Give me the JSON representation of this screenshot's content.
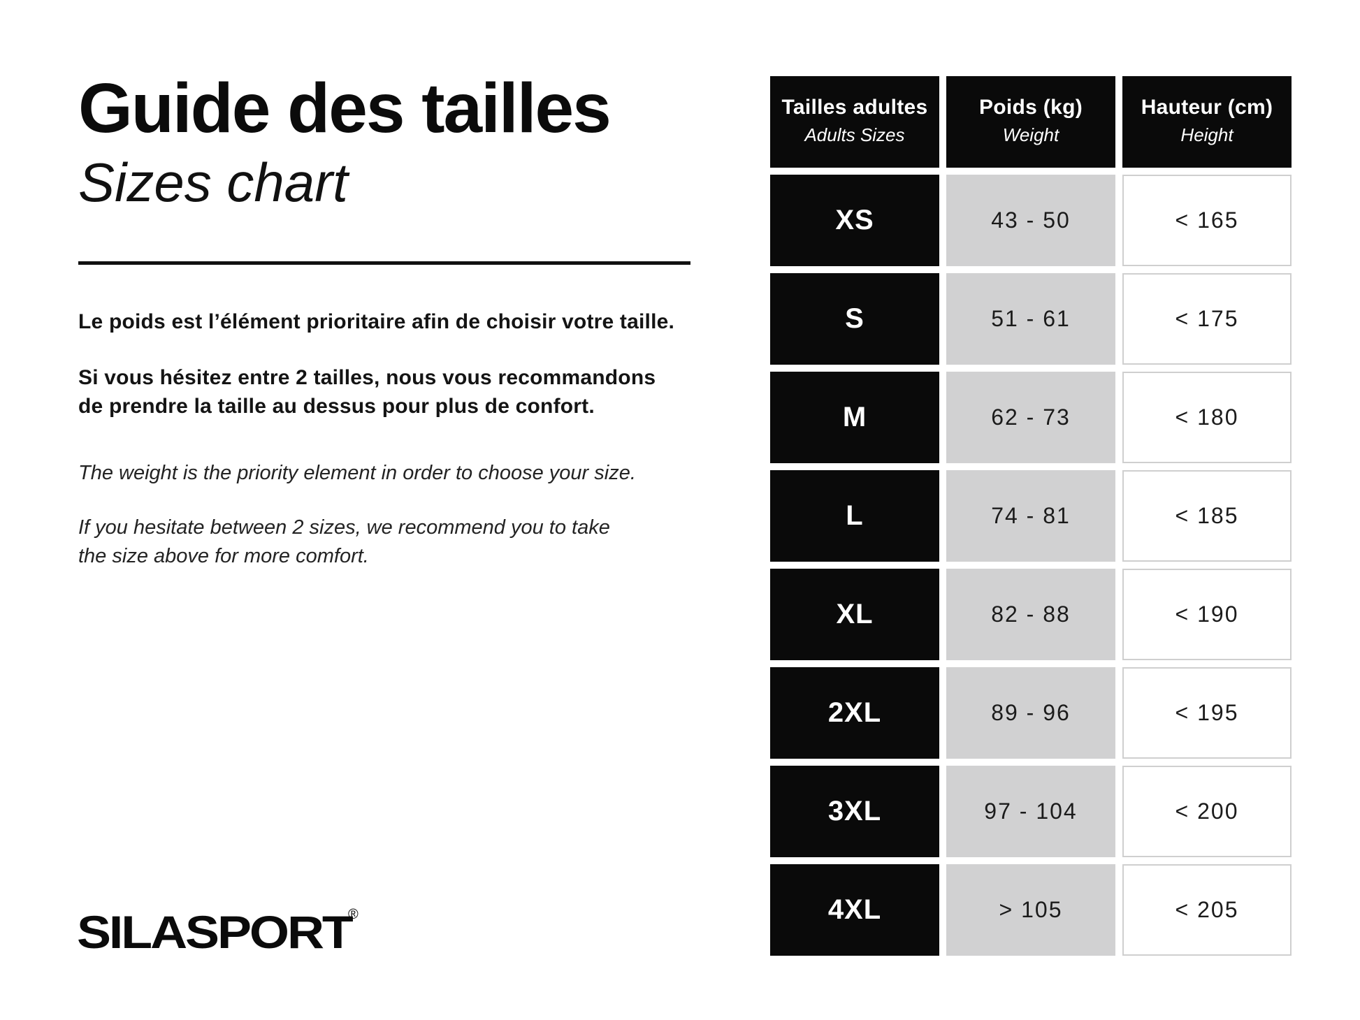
{
  "header": {
    "title_fr": "Guide des tailles",
    "title_en": "Sizes chart"
  },
  "intro": {
    "fr_1": "Le poids est l’élément prioritaire afin de choisir votre taille.",
    "fr_2a": "Si vous hésitez entre 2 tailles, nous vous recommandons",
    "fr_2b": "de prendre la taille au dessus pour plus de confort.",
    "en_1": "The weight is the priority element in order to choose your size.",
    "en_2a": "If you hesitate between 2 sizes, we recommend you to take",
    "en_2b": "the size above for more comfort."
  },
  "brand": {
    "logo_text": "SILASPORT",
    "registered_mark": "®"
  },
  "colors": {
    "cell_black": "#0a0a0a",
    "cell_gray": "#d1d1d2",
    "cell_white_border": "#cfcfcf"
  },
  "table": {
    "columns": [
      {
        "header_fr": "Tailles adultes",
        "header_en": "Adults Sizes"
      },
      {
        "header_fr": "Poids (kg)",
        "header_en": "Weight"
      },
      {
        "header_fr": "Hauteur (cm)",
        "header_en": "Height"
      }
    ],
    "rows": [
      {
        "size": "XS",
        "weight": "43 - 50",
        "height": "< 165"
      },
      {
        "size": "S",
        "weight": "51 - 61",
        "height": "< 175"
      },
      {
        "size": "M",
        "weight": "62 - 73",
        "height": "< 180"
      },
      {
        "size": "L",
        "weight": "74 - 81",
        "height": "< 185"
      },
      {
        "size": "XL",
        "weight": "82 - 88",
        "height": "< 190"
      },
      {
        "size": "2XL",
        "weight": "89 - 96",
        "height": "< 195"
      },
      {
        "size": "3XL",
        "weight": "97 - 104",
        "height": "< 200"
      },
      {
        "size": "4XL",
        "weight": "> 105",
        "height": "< 205"
      }
    ]
  },
  "chart_data": {
    "type": "table",
    "title": "Guide des tailles / Sizes chart",
    "columns": [
      "Tailles adultes / Adults Sizes",
      "Poids (kg) / Weight",
      "Hauteur (cm) / Height"
    ],
    "rows": [
      [
        "XS",
        "43 - 50",
        "< 165"
      ],
      [
        "S",
        "51 - 61",
        "< 175"
      ],
      [
        "M",
        "62 - 73",
        "< 180"
      ],
      [
        "L",
        "74 - 81",
        "< 185"
      ],
      [
        "XL",
        "82 - 88",
        "< 190"
      ],
      [
        "2XL",
        "89 - 96",
        "< 195"
      ],
      [
        "3XL",
        "97 - 104",
        "< 200"
      ],
      [
        "4XL",
        "> 105",
        "< 205"
      ]
    ]
  }
}
